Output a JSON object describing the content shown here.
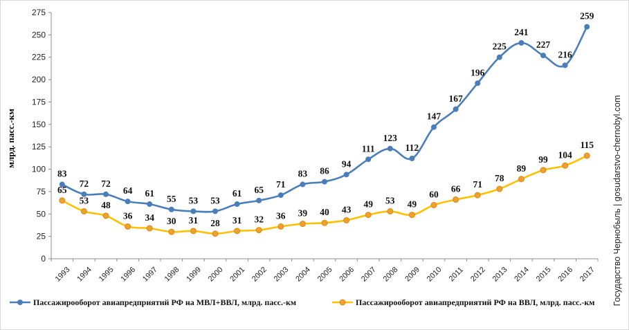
{
  "chart_data": {
    "type": "line",
    "x": [
      "1993",
      "1994",
      "1995",
      "1996",
      "1997",
      "1998",
      "1999",
      "2000",
      "2001",
      "2002",
      "2003",
      "2004",
      "2005",
      "2006",
      "2007",
      "2008",
      "2009",
      "2010",
      "2011",
      "2012",
      "2013",
      "2014",
      "2015",
      "2016",
      "2017"
    ],
    "series": [
      {
        "name": "Пассажирооборот  авиапредприятий  РФ на МВЛ+ВВЛ, млрд.  пасс.-км",
        "color": "#4a7ebb",
        "values": [
          83,
          72,
          72,
          64,
          61,
          55,
          53,
          53,
          61,
          65,
          71,
          83,
          86,
          94,
          111,
          123,
          112,
          147,
          167,
          196,
          225,
          241,
          227,
          216,
          259
        ]
      },
      {
        "name": "Пассажирооборот  авиапредприятий  РФ на ВВЛ, млрд.  пасс.-км",
        "color": "#ffc000",
        "values": [
          65,
          53,
          48,
          36,
          34,
          30,
          31,
          28,
          31,
          32,
          36,
          39,
          40,
          43,
          49,
          53,
          49,
          60,
          66,
          71,
          78,
          89,
          99,
          104,
          115
        ]
      }
    ],
    "ylabel": "млрд. пасс.-км",
    "ylim": [
      0,
      275
    ],
    "yticks": [
      0,
      25,
      50,
      75,
      100,
      125,
      150,
      175,
      200,
      225,
      250,
      275
    ],
    "grid": false,
    "legend_position": "bottom"
  },
  "watermark": "Государство Чернобыль | gosudarstvo-chernobyl.com"
}
